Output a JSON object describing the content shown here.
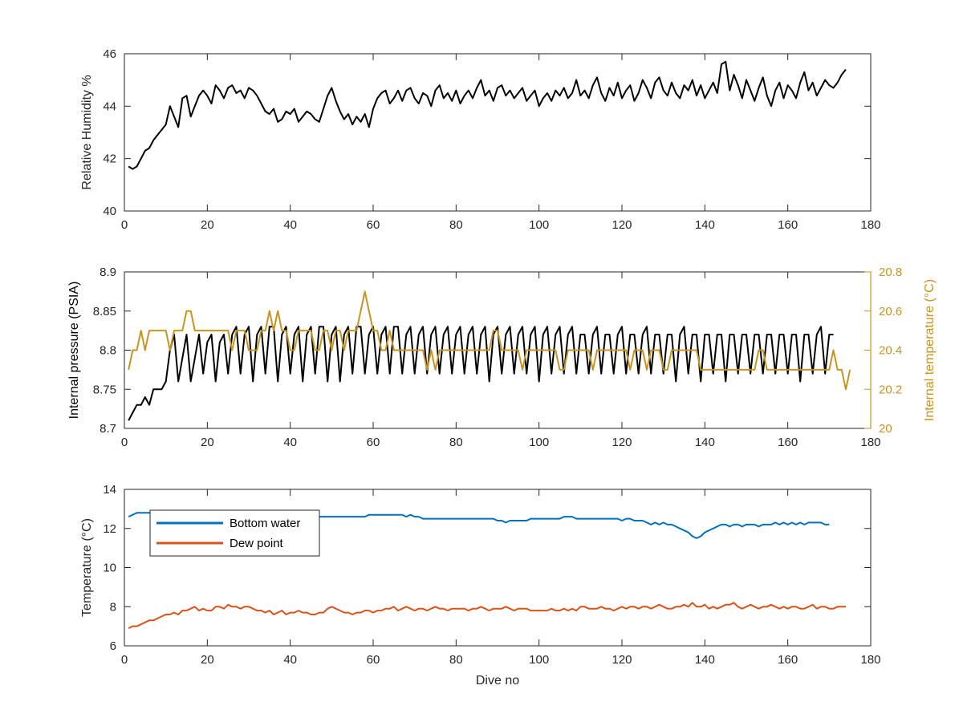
{
  "chart_data": [
    {
      "type": "line",
      "ylabel": "Relative Humidity %",
      "xlabel": "",
      "xlim": [
        0,
        180
      ],
      "ylim": [
        40,
        46
      ],
      "xticks": [
        "0",
        "20",
        "40",
        "60",
        "80",
        "100",
        "120",
        "140",
        "160",
        "180"
      ],
      "yticks": [
        "40",
        "42",
        "44",
        "46"
      ],
      "grid": false,
      "series": [
        {
          "color": "#000000",
          "x_start": 1,
          "x_step": 1,
          "values": [
            41.7,
            41.6,
            41.7,
            42.0,
            42.3,
            42.4,
            42.7,
            42.9,
            43.1,
            43.3,
            44.0,
            43.6,
            43.2,
            44.3,
            44.4,
            43.6,
            44.0,
            44.4,
            44.6,
            44.4,
            44.1,
            44.8,
            44.6,
            44.3,
            44.7,
            44.8,
            44.5,
            44.6,
            44.3,
            44.7,
            44.6,
            44.4,
            44.1,
            43.8,
            43.7,
            43.9,
            43.4,
            43.5,
            43.8,
            43.7,
            43.9,
            43.4,
            43.6,
            43.8,
            43.7,
            43.5,
            43.4,
            43.9,
            44.4,
            44.7,
            44.2,
            43.8,
            43.5,
            43.7,
            43.3,
            43.6,
            43.4,
            43.7,
            43.2,
            43.9,
            44.3,
            44.5,
            44.6,
            44.1,
            44.3,
            44.6,
            44.2,
            44.6,
            44.7,
            44.3,
            44.1,
            44.5,
            44.4,
            44.0,
            44.6,
            44.8,
            44.3,
            44.5,
            44.2,
            44.6,
            44.1,
            44.4,
            44.6,
            44.3,
            44.7,
            45.0,
            44.4,
            44.6,
            44.2,
            44.7,
            44.8,
            44.4,
            44.6,
            44.3,
            44.5,
            44.7,
            44.2,
            44.4,
            44.6,
            44.0,
            44.3,
            44.5,
            44.2,
            44.6,
            44.4,
            44.7,
            44.3,
            44.5,
            45.0,
            44.4,
            44.6,
            44.3,
            44.8,
            45.1,
            44.5,
            44.2,
            44.7,
            44.4,
            44.9,
            44.3,
            44.6,
            44.8,
            44.2,
            44.5,
            45.0,
            44.7,
            44.3,
            44.9,
            45.1,
            44.6,
            44.4,
            44.9,
            44.5,
            44.3,
            44.8,
            44.6,
            45.0,
            44.4,
            44.8,
            44.3,
            44.6,
            44.9,
            44.5,
            45.6,
            45.7,
            44.6,
            45.2,
            44.8,
            44.3,
            45.0,
            44.6,
            44.2,
            44.7,
            45.1,
            44.4,
            44.0,
            44.6,
            44.9,
            44.3,
            44.8,
            44.6,
            44.3,
            44.9,
            45.3,
            44.6,
            44.9,
            44.4,
            44.7,
            45.0,
            44.8,
            44.7,
            44.9,
            45.2,
            45.4
          ]
        }
      ]
    },
    {
      "type": "line",
      "ylabel": "Internal pressure (PSIA)",
      "ylabel_right": "Internal temperature (°C)",
      "xlabel": "",
      "xlim": [
        0,
        180
      ],
      "ylim": [
        8.7,
        8.9
      ],
      "ylim_right": [
        20,
        20.8
      ],
      "xticks": [
        "0",
        "20",
        "40",
        "60",
        "80",
        "100",
        "120",
        "140",
        "160",
        "180"
      ],
      "yticks": [
        "8.7",
        "8.75",
        "8.8",
        "8.85",
        "8.9"
      ],
      "yticks_right": [
        "20",
        "20.2",
        "20.4",
        "20.6",
        "20.8"
      ],
      "grid": false,
      "series": [
        {
          "axis": "left",
          "color": "#000000",
          "x_start": 1,
          "x_step": 1,
          "values": [
            8.71,
            8.72,
            8.73,
            8.73,
            8.74,
            8.73,
            8.75,
            8.75,
            8.75,
            8.76,
            8.8,
            8.82,
            8.76,
            8.79,
            8.82,
            8.76,
            8.79,
            8.82,
            8.77,
            8.81,
            8.82,
            8.76,
            8.81,
            8.82,
            8.77,
            8.82,
            8.83,
            8.77,
            8.82,
            8.83,
            8.76,
            8.82,
            8.83,
            8.77,
            8.83,
            8.83,
            8.76,
            8.82,
            8.83,
            8.77,
            8.82,
            8.83,
            8.76,
            8.82,
            8.83,
            8.77,
            8.83,
            8.83,
            8.76,
            8.82,
            8.83,
            8.76,
            8.82,
            8.83,
            8.77,
            8.83,
            8.83,
            8.77,
            8.82,
            8.83,
            8.77,
            8.82,
            8.83,
            8.77,
            8.83,
            8.83,
            8.77,
            8.82,
            8.83,
            8.77,
            8.82,
            8.83,
            8.77,
            8.82,
            8.83,
            8.77,
            8.82,
            8.83,
            8.77,
            8.82,
            8.83,
            8.77,
            8.82,
            8.83,
            8.77,
            8.82,
            8.83,
            8.76,
            8.82,
            8.83,
            8.77,
            8.82,
            8.83,
            8.77,
            8.82,
            8.83,
            8.77,
            8.82,
            8.83,
            8.76,
            8.82,
            8.83,
            8.77,
            8.82,
            8.83,
            8.77,
            8.82,
            8.83,
            8.77,
            8.82,
            8.82,
            8.77,
            8.82,
            8.83,
            8.77,
            8.82,
            8.82,
            8.77,
            8.82,
            8.83,
            8.77,
            8.82,
            8.82,
            8.77,
            8.82,
            8.83,
            8.77,
            8.82,
            8.82,
            8.77,
            8.82,
            8.82,
            8.76,
            8.82,
            8.83,
            8.77,
            8.82,
            8.82,
            8.76,
            8.82,
            8.82,
            8.77,
            8.82,
            8.82,
            8.76,
            8.82,
            8.82,
            8.77,
            8.82,
            8.82,
            8.77,
            8.82,
            8.82,
            8.77,
            8.82,
            8.82,
            8.77,
            8.82,
            8.82,
            8.77,
            8.82,
            8.82,
            8.76,
            8.82,
            8.82,
            8.77,
            8.82,
            8.83,
            8.77,
            8.82,
            8.82
          ]
        },
        {
          "axis": "right",
          "color": "#C8931F",
          "x_start": 1,
          "x_step": 1,
          "values": [
            20.3,
            20.4,
            20.4,
            20.5,
            20.4,
            20.5,
            20.5,
            20.5,
            20.5,
            20.5,
            20.4,
            20.5,
            20.5,
            20.5,
            20.6,
            20.6,
            20.5,
            20.5,
            20.5,
            20.5,
            20.5,
            20.5,
            20.5,
            20.5,
            20.5,
            20.4,
            20.5,
            20.5,
            20.5,
            20.4,
            20.4,
            20.4,
            20.5,
            20.5,
            20.6,
            20.5,
            20.6,
            20.5,
            20.5,
            20.4,
            20.4,
            20.5,
            20.5,
            20.5,
            20.5,
            20.4,
            20.4,
            20.5,
            20.5,
            20.4,
            20.5,
            20.5,
            20.4,
            20.5,
            20.5,
            20.5,
            20.6,
            20.7,
            20.6,
            20.5,
            20.5,
            20.4,
            20.4,
            20.5,
            20.4,
            20.4,
            20.4,
            20.4,
            20.4,
            20.4,
            20.4,
            20.4,
            20.3,
            20.4,
            20.3,
            20.4,
            20.4,
            20.4,
            20.4,
            20.4,
            20.4,
            20.4,
            20.4,
            20.4,
            20.4,
            20.4,
            20.4,
            20.4,
            20.5,
            20.5,
            20.4,
            20.4,
            20.4,
            20.4,
            20.4,
            20.3,
            20.4,
            20.4,
            20.4,
            20.4,
            20.4,
            20.4,
            20.4,
            20.4,
            20.3,
            20.3,
            20.4,
            20.4,
            20.4,
            20.4,
            20.4,
            20.4,
            20.3,
            20.4,
            20.4,
            20.4,
            20.4,
            20.4,
            20.4,
            20.4,
            20.4,
            20.3,
            20.4,
            20.4,
            20.4,
            20.3,
            20.4,
            20.4,
            20.4,
            20.3,
            20.3,
            20.4,
            20.4,
            20.4,
            20.4,
            20.4,
            20.4,
            20.4,
            20.3,
            20.3,
            20.3,
            20.3,
            20.3,
            20.3,
            20.3,
            20.3,
            20.3,
            20.3,
            20.3,
            20.3,
            20.3,
            20.3,
            20.4,
            20.4,
            20.3,
            20.3,
            20.3,
            20.3,
            20.3,
            20.3,
            20.3,
            20.3,
            20.3,
            20.3,
            20.3,
            20.3,
            20.3,
            20.3,
            20.3,
            20.3,
            20.4,
            20.3,
            20.3,
            20.2,
            20.3
          ]
        }
      ]
    },
    {
      "type": "line",
      "ylabel": "Temperature (°C)",
      "xlabel": "Dive no",
      "xlim": [
        0,
        180
      ],
      "ylim": [
        6,
        14
      ],
      "xticks": [
        "0",
        "20",
        "40",
        "60",
        "80",
        "100",
        "120",
        "140",
        "160",
        "180"
      ],
      "yticks": [
        "6",
        "8",
        "10",
        "12",
        "14"
      ],
      "grid": false,
      "legend_position": "top-left",
      "series": [
        {
          "name": "Bottom water",
          "color": "#0072BD",
          "x_start": 1,
          "x_step": 1,
          "values": [
            12.6,
            12.7,
            12.8,
            12.8,
            12.8,
            12.8,
            12.8,
            12.8,
            12.8,
            12.8,
            12.8,
            12.8,
            12.8,
            12.8,
            12.8,
            12.8,
            12.8,
            12.8,
            12.7,
            12.7,
            12.7,
            12.7,
            12.7,
            12.7,
            12.7,
            12.7,
            12.7,
            12.7,
            12.7,
            12.7,
            12.7,
            12.7,
            12.7,
            12.7,
            12.7,
            12.7,
            12.7,
            12.7,
            12.7,
            12.7,
            12.6,
            12.6,
            12.6,
            12.6,
            12.6,
            12.6,
            12.6,
            12.6,
            12.6,
            12.6,
            12.6,
            12.6,
            12.6,
            12.6,
            12.6,
            12.6,
            12.6,
            12.6,
            12.7,
            12.7,
            12.7,
            12.7,
            12.7,
            12.7,
            12.7,
            12.7,
            12.7,
            12.6,
            12.7,
            12.6,
            12.6,
            12.5,
            12.5,
            12.5,
            12.5,
            12.5,
            12.5,
            12.5,
            12.5,
            12.5,
            12.5,
            12.5,
            12.5,
            12.5,
            12.5,
            12.5,
            12.5,
            12.5,
            12.5,
            12.4,
            12.4,
            12.3,
            12.4,
            12.4,
            12.4,
            12.4,
            12.4,
            12.5,
            12.5,
            12.5,
            12.5,
            12.5,
            12.5,
            12.5,
            12.5,
            12.6,
            12.6,
            12.6,
            12.5,
            12.5,
            12.5,
            12.5,
            12.5,
            12.5,
            12.5,
            12.5,
            12.5,
            12.5,
            12.5,
            12.4,
            12.5,
            12.5,
            12.4,
            12.4,
            12.4,
            12.3,
            12.2,
            12.3,
            12.2,
            12.3,
            12.2,
            12.2,
            12.1,
            12.0,
            11.9,
            11.8,
            11.6,
            11.5,
            11.6,
            11.8,
            11.9,
            12.0,
            12.1,
            12.2,
            12.2,
            12.1,
            12.2,
            12.2,
            12.1,
            12.2,
            12.2,
            12.2,
            12.1,
            12.2,
            12.2,
            12.2,
            12.3,
            12.2,
            12.3,
            12.2,
            12.3,
            12.2,
            12.3,
            12.2,
            12.3,
            12.3,
            12.3,
            12.3,
            12.2,
            12.2
          ]
        },
        {
          "name": "Dew point",
          "color": "#D95319",
          "x_start": 1,
          "x_step": 1,
          "values": [
            6.9,
            7.0,
            7.0,
            7.1,
            7.2,
            7.3,
            7.3,
            7.4,
            7.5,
            7.6,
            7.6,
            7.7,
            7.6,
            7.8,
            7.8,
            7.9,
            8.0,
            7.8,
            7.9,
            7.8,
            7.8,
            8.0,
            8.0,
            7.9,
            8.1,
            8.0,
            8.0,
            7.9,
            8.0,
            8.0,
            7.9,
            7.8,
            7.8,
            7.7,
            7.8,
            7.6,
            7.7,
            7.8,
            7.6,
            7.7,
            7.7,
            7.8,
            7.7,
            7.7,
            7.6,
            7.6,
            7.7,
            7.7,
            7.9,
            8.0,
            7.9,
            7.8,
            7.7,
            7.7,
            7.6,
            7.7,
            7.7,
            7.8,
            7.8,
            7.7,
            7.8,
            7.8,
            7.9,
            7.9,
            8.0,
            7.8,
            7.9,
            8.0,
            7.9,
            7.8,
            7.9,
            7.9,
            7.8,
            7.9,
            8.0,
            7.9,
            7.9,
            7.8,
            7.9,
            7.9,
            7.9,
            7.9,
            7.8,
            7.9,
            7.9,
            8.0,
            7.9,
            7.8,
            7.9,
            7.9,
            7.9,
            8.0,
            7.9,
            7.8,
            7.9,
            7.9,
            7.9,
            7.8,
            7.8,
            7.8,
            7.8,
            7.8,
            7.9,
            7.8,
            7.8,
            7.9,
            7.8,
            7.9,
            7.8,
            8.0,
            8.0,
            7.9,
            7.9,
            7.9,
            8.0,
            7.9,
            7.9,
            7.8,
            7.9,
            8.0,
            7.9,
            8.0,
            8.0,
            7.9,
            8.0,
            8.0,
            7.9,
            8.0,
            8.1,
            8.0,
            7.9,
            7.9,
            8.0,
            8.0,
            8.1,
            8.0,
            8.2,
            8.0,
            8.0,
            8.1,
            7.9,
            8.0,
            7.9,
            8.0,
            8.1,
            8.1,
            8.2,
            8.0,
            7.9,
            8.0,
            8.1,
            8.0,
            7.9,
            8.0,
            8.0,
            8.1,
            8.0,
            7.9,
            8.0,
            7.9,
            8.0,
            8.0,
            7.9,
            7.9,
            8.0,
            8.1,
            7.9,
            8.0,
            8.0,
            7.9,
            7.9,
            8.0,
            8.0,
            8.0
          ]
        }
      ]
    }
  ]
}
